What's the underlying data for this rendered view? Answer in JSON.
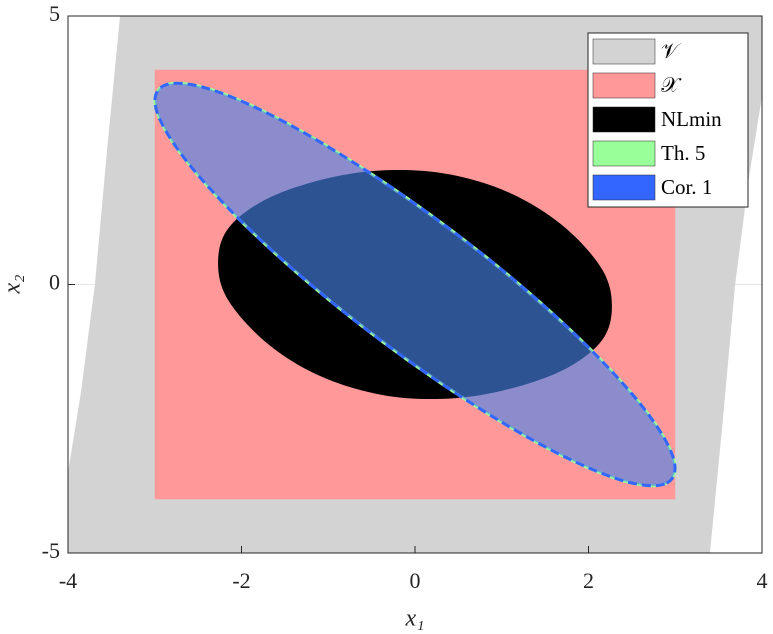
{
  "chart_data": {
    "type": "area",
    "xlabel": "x₁",
    "ylabel": "x₂",
    "xlim": [
      -4,
      4
    ],
    "ylim": [
      -5,
      5
    ],
    "xticks": [
      -4,
      -2,
      0,
      2,
      4
    ],
    "yticks": [
      -5,
      0,
      5
    ],
    "grid": true,
    "legend": "northeast",
    "series": [
      {
        "name": "𝒱",
        "color": "#d3d3d3",
        "x": [
          -4,
          -4,
          -3.85,
          -3.69,
          -3.55,
          -3.4,
          4,
          4,
          3.85,
          3.69,
          3.55,
          3.4
        ],
        "y": [
          -5,
          -3.5,
          -2,
          0,
          2.5,
          5,
          5,
          3.5,
          2,
          0,
          -2.5,
          -5
        ]
      },
      {
        "name": "𝒳",
        "color": "#ff9999",
        "x": [
          -3,
          3,
          3,
          -3
        ],
        "y": [
          -4,
          -4,
          4,
          4
        ]
      },
      {
        "name": "NLmin",
        "color": "#000000",
        "x": [
          -2.27,
          -2.15,
          -1.7,
          -1.0,
          -0.3,
          0.4,
          1.1,
          1.7,
          2.15,
          2.27,
          2.15,
          1.7,
          1.0,
          0.3,
          -0.4,
          -1.1,
          -1.7,
          -2.15
        ],
        "y": [
          0.4,
          1.05,
          1.6,
          1.98,
          2.13,
          2.05,
          1.7,
          1.1,
          0.3,
          -0.4,
          -1.05,
          -1.6,
          -1.98,
          -2.13,
          -2.05,
          -1.7,
          -1.1,
          -0.3
        ]
      },
      {
        "name": "Th. 5",
        "color": "#99ff99",
        "x": [
          2.9,
          2.97,
          2.58,
          1.8,
          0.75,
          -0.42,
          -1.52,
          -2.39,
          -2.9,
          -2.97,
          -2.58,
          -1.8,
          -0.75,
          0.42,
          1.52,
          2.39
        ],
        "y": [
          -3.7,
          -3.19,
          -2.19,
          -0.86,
          0.6,
          1.97,
          3.04,
          3.65,
          3.7,
          3.19,
          2.19,
          0.86,
          -0.6,
          -1.97,
          -3.04,
          -3.65
        ]
      },
      {
        "name": "Cor. 1",
        "color": "#3366ff",
        "x": [
          2.9,
          2.97,
          2.58,
          1.8,
          0.75,
          -0.42,
          -1.52,
          -2.39,
          -2.9,
          -2.97,
          -2.58,
          -1.8,
          -0.75,
          0.42,
          1.52,
          2.39
        ],
        "y": [
          -3.7,
          -3.19,
          -2.19,
          -0.86,
          0.6,
          1.97,
          3.04,
          3.65,
          3.7,
          3.19,
          2.19,
          0.86,
          -0.6,
          -1.97,
          -3.04,
          -3.65
        ]
      }
    ]
  }
}
